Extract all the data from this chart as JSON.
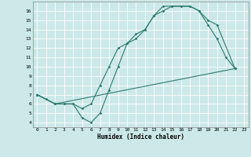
{
  "xlabel": "Humidex (Indice chaleur)",
  "bg_color": "#cce8e8",
  "grid_color": "#ffffff",
  "line_color": "#2d7a6e",
  "xlim": [
    -0.5,
    23.5
  ],
  "ylim": [
    3.5,
    17
  ],
  "xticks": [
    0,
    1,
    2,
    3,
    4,
    5,
    6,
    7,
    8,
    9,
    10,
    11,
    12,
    13,
    14,
    15,
    16,
    17,
    18,
    19,
    20,
    21,
    22,
    23
  ],
  "yticks": [
    4,
    5,
    6,
    7,
    8,
    9,
    10,
    11,
    12,
    13,
    14,
    15,
    16
  ],
  "line1_x": [
    0,
    1,
    2,
    3,
    4,
    5,
    6,
    7,
    8,
    9,
    10,
    11,
    12,
    13,
    14,
    15,
    16,
    17,
    18,
    19,
    20,
    21,
    22
  ],
  "line1_y": [
    7,
    6.5,
    6,
    6,
    6,
    4.5,
    4,
    5,
    7.5,
    10,
    12.5,
    13.5,
    14,
    15.5,
    16.5,
    16.5,
    16.5,
    16.5,
    16,
    14.5,
    13,
    11,
    9.8
  ],
  "line2_x": [
    0,
    2,
    3,
    4,
    5,
    6,
    7,
    8,
    9,
    10,
    11,
    12,
    13,
    14,
    15,
    16,
    17,
    18,
    19,
    20,
    22
  ],
  "line2_y": [
    7,
    6,
    6,
    6,
    5.5,
    6,
    8,
    10,
    12,
    12.5,
    13,
    14,
    15.5,
    16,
    16.5,
    16.5,
    16.5,
    16,
    15,
    14.5,
    9.8
  ],
  "line3_x": [
    0,
    2,
    22
  ],
  "line3_y": [
    7,
    6,
    9.8
  ]
}
